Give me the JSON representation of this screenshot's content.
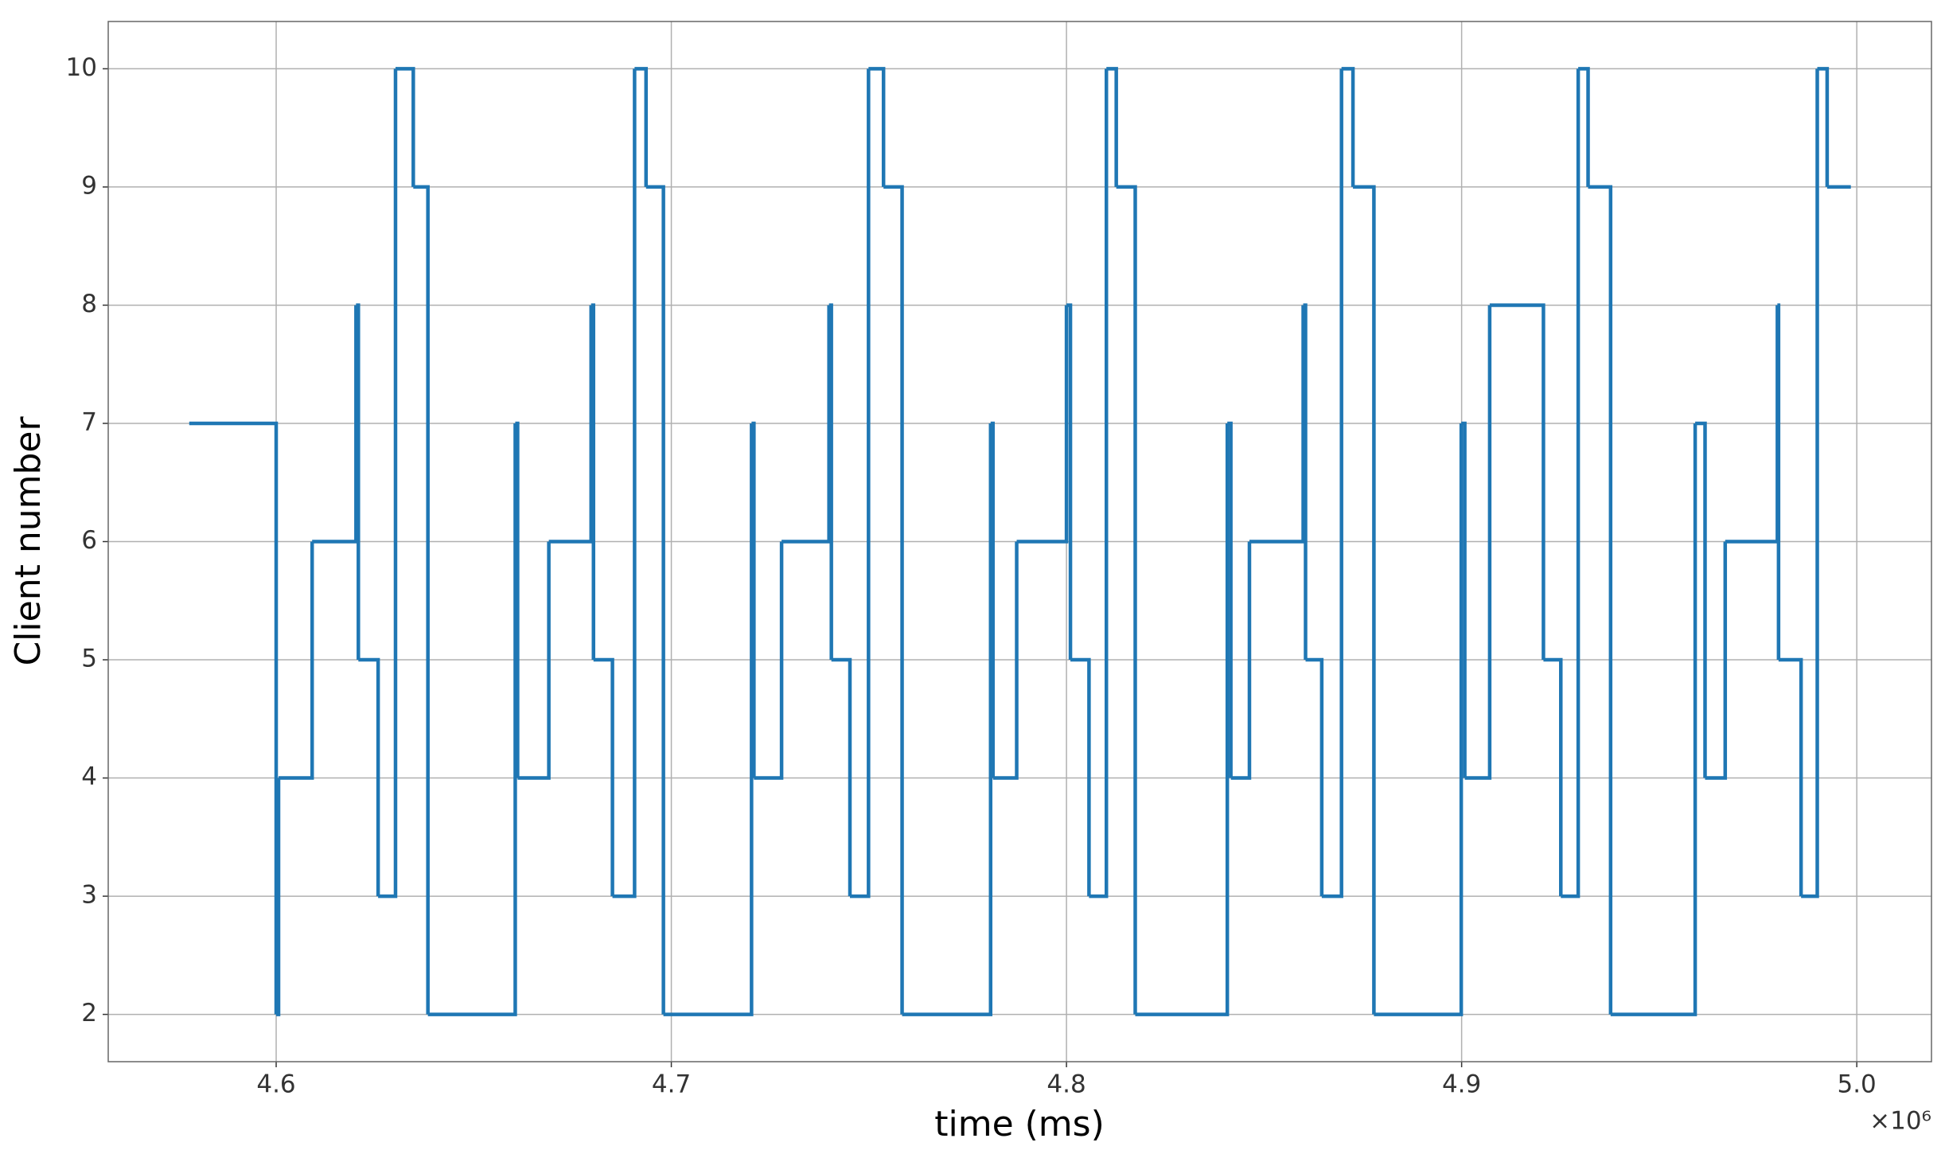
{
  "chart_data": {
    "type": "line",
    "step": "post",
    "xlabel": "time (ms)",
    "ylabel": "Client number",
    "x_offset_label": "×10⁶",
    "x": [
      4578000,
      4600000,
      4600600,
      4609100,
      4620200,
      4620800,
      4625800,
      4630200,
      4634700,
      4638400,
      4660500,
      4661100,
      4669000,
      4679700,
      4680300,
      4685100,
      4690700,
      4693600,
      4698000,
      4720300,
      4720900,
      4727900,
      4739900,
      4740500,
      4745200,
      4749900,
      4753700,
      4758400,
      4780800,
      4781400,
      4787400,
      4800000,
      4801000,
      4805700,
      4810100,
      4812600,
      4817400,
      4840700,
      4841600,
      4846300,
      4859900,
      4860500,
      4864600,
      4869600,
      4872500,
      4877800,
      4899900,
      4900800,
      4907100,
      4920700,
      4925100,
      4929500,
      4932000,
      4937700,
      4959100,
      4961600,
      4966700,
      4979900,
      4980200,
      4985900,
      4990000,
      4992500,
      4998500
    ],
    "series": [
      {
        "color": "#1f77b4",
        "values": [
          7,
          2,
          4,
          6,
          8,
          5,
          3,
          10,
          9,
          2,
          7,
          4,
          6,
          8,
          5,
          3,
          10,
          9,
          2,
          7,
          4,
          6,
          8,
          5,
          3,
          10,
          9,
          2,
          7,
          4,
          6,
          8,
          5,
          3,
          10,
          9,
          2,
          7,
          4,
          6,
          8,
          5,
          3,
          10,
          9,
          2,
          7,
          4,
          8,
          5,
          3,
          10,
          9,
          2,
          7,
          4,
          6,
          8,
          5,
          3,
          10,
          9,
          9
        ]
      }
    ],
    "xlim": [
      4557500,
      5018900
    ],
    "ylim": [
      1.6,
      10.4
    ],
    "xticks": [
      {
        "value": 4600000,
        "label": "4.6"
      },
      {
        "value": 4700000,
        "label": "4.7"
      },
      {
        "value": 4800000,
        "label": "4.8"
      },
      {
        "value": 4900000,
        "label": "4.9"
      },
      {
        "value": 5000000,
        "label": "5.0"
      }
    ],
    "yticks": [
      2,
      3,
      4,
      5,
      6,
      7,
      8,
      9,
      10
    ],
    "grid": true
  }
}
